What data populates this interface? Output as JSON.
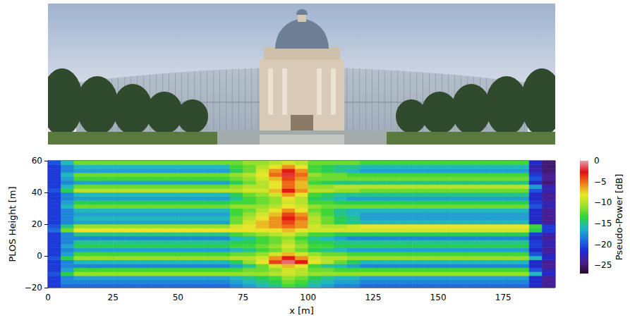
{
  "chart_data": {
    "type": "heatmap",
    "xlabel": "x [m]",
    "ylabel": "PLOS Height [m]",
    "xlim": [
      0,
      195
    ],
    "ylim": [
      -20,
      60
    ],
    "xticks": [
      0,
      25,
      50,
      75,
      100,
      125,
      150,
      175
    ],
    "yticks": [
      {
        "value": -20,
        "label": "−20"
      },
      0,
      20,
      40,
      60
    ],
    "grid": false,
    "x": [
      2.5,
      7.5,
      12.5,
      17.5,
      22.5,
      27.5,
      32.5,
      37.5,
      42.5,
      47.5,
      52.5,
      57.5,
      62.5,
      67.5,
      72.5,
      77.5,
      82.5,
      87.5,
      92.5,
      97.5,
      102.5,
      107.5,
      112.5,
      117.5,
      122.5,
      127.5,
      132.5,
      137.5,
      142.5,
      147.5,
      152.5,
      157.5,
      162.5,
      167.5,
      172.5,
      177.5,
      182.5,
      187.5,
      192.5
    ],
    "y": [
      -18.75,
      -16.25,
      -13.75,
      -11.25,
      -8.75,
      -6.25,
      -3.75,
      -1.25,
      1.25,
      3.75,
      6.25,
      8.75,
      11.25,
      13.75,
      16.25,
      18.75,
      21.25,
      23.75,
      26.25,
      28.75,
      31.25,
      33.75,
      36.25,
      38.75,
      41.25,
      43.75,
      46.25,
      48.75,
      51.25,
      53.75,
      56.25,
      58.75
    ],
    "z": [
      [
        -21,
        -19,
        -19,
        -19,
        -19,
        -19,
        -19,
        -19,
        -19,
        -19,
        -19,
        -19,
        -19,
        -19,
        -18,
        -17,
        -16,
        -15,
        -13,
        -14,
        -16,
        -17,
        -18,
        -18,
        -19,
        -19,
        -19,
        -19,
        -19,
        -19,
        -19,
        -19,
        -19,
        -19,
        -19,
        -19,
        -19,
        -22,
        -24
      ],
      [
        -21,
        -18,
        -18,
        -18,
        -18,
        -18,
        -18,
        -18,
        -18,
        -18,
        -18,
        -18,
        -18,
        -18,
        -17,
        -16,
        -15,
        -14,
        -12,
        -13,
        -15,
        -16,
        -17,
        -17,
        -18,
        -18,
        -18,
        -18,
        -18,
        -18,
        -18,
        -18,
        -18,
        -18,
        -18,
        -18,
        -18,
        -22,
        -24
      ],
      [
        -21,
        -18,
        -17,
        -17,
        -17,
        -17,
        -17,
        -17,
        -17,
        -17,
        -17,
        -17,
        -17,
        -17,
        -16,
        -15,
        -14,
        -13,
        -11,
        -12,
        -14,
        -15,
        -16,
        -16,
        -17,
        -17,
        -17,
        -17,
        -17,
        -17,
        -17,
        -17,
        -17,
        -17,
        -17,
        -17,
        -17,
        -22,
        -24
      ],
      [
        -20,
        -14,
        -11,
        -11,
        -11,
        -11,
        -11,
        -11,
        -11,
        -11,
        -11,
        -11,
        -11,
        -11,
        -11,
        -11,
        -11,
        -10,
        -9,
        -10,
        -11,
        -11,
        -11,
        -11,
        -11,
        -11,
        -11,
        -11,
        -11,
        -11,
        -11,
        -11,
        -11,
        -11,
        -11,
        -11,
        -11,
        -16,
        -22
      ],
      [
        -21,
        -17,
        -13,
        -13,
        -13,
        -13,
        -13,
        -13,
        -13,
        -13,
        -13,
        -13,
        -13,
        -13,
        -13,
        -12,
        -12,
        -11,
        -9,
        -10,
        -12,
        -12,
        -13,
        -13,
        -13,
        -13,
        -13,
        -13,
        -13,
        -13,
        -13,
        -13,
        -13,
        -13,
        -13,
        -13,
        -13,
        -20,
        -23
      ],
      [
        -21,
        -18,
        -18,
        -18,
        -18,
        -18,
        -18,
        -18,
        -18,
        -18,
        -18,
        -18,
        -18,
        -18,
        -17,
        -15,
        -12,
        -9,
        -7,
        -8,
        -13,
        -15,
        -16,
        -17,
        -18,
        -18,
        -18,
        -18,
        -18,
        -18,
        -18,
        -18,
        -18,
        -18,
        -18,
        -18,
        -18,
        -22,
        -24
      ],
      [
        -21,
        -18,
        -16,
        -16,
        -16,
        -16,
        -16,
        -16,
        -16,
        -16,
        -16,
        -16,
        -16,
        -16,
        -14,
        -11,
        -8,
        -4,
        -1,
        -3,
        -8,
        -10,
        -12,
        -14,
        -16,
        -16,
        -16,
        -16,
        -16,
        -16,
        -16,
        -16,
        -16,
        -16,
        -16,
        -16,
        -16,
        -22,
        -24
      ],
      [
        -20,
        -14,
        -11,
        -11,
        -11,
        -11,
        -11,
        -11,
        -11,
        -11,
        -11,
        -11,
        -11,
        -11,
        -10,
        -10,
        -9,
        -6,
        -3,
        -6,
        -9,
        -10,
        -10,
        -11,
        -11,
        -11,
        -11,
        -11,
        -11,
        -11,
        -11,
        -11,
        -11,
        -11,
        -11,
        -11,
        -11,
        -16,
        -22
      ],
      [
        -21,
        -17,
        -13,
        -13,
        -13,
        -13,
        -13,
        -13,
        -13,
        -13,
        -13,
        -13,
        -13,
        -13,
        -12,
        -12,
        -11,
        -9,
        -7,
        -9,
        -11,
        -12,
        -12,
        -13,
        -13,
        -13,
        -13,
        -13,
        -13,
        -13,
        -13,
        -13,
        -13,
        -13,
        -13,
        -13,
        -13,
        -20,
        -23
      ],
      [
        -21,
        -18,
        -17,
        -17,
        -17,
        -17,
        -17,
        -17,
        -17,
        -17,
        -17,
        -17,
        -17,
        -17,
        -16,
        -15,
        -13,
        -12,
        -10,
        -12,
        -14,
        -15,
        -16,
        -17,
        -17,
        -17,
        -17,
        -17,
        -17,
        -17,
        -17,
        -17,
        -17,
        -17,
        -17,
        -17,
        -17,
        -22,
        -24
      ],
      [
        -21,
        -17,
        -14,
        -14,
        -14,
        -14,
        -14,
        -14,
        -14,
        -14,
        -14,
        -14,
        -14,
        -14,
        -13,
        -13,
        -12,
        -11,
        -9,
        -11,
        -13,
        -13,
        -14,
        -14,
        -14,
        -14,
        -14,
        -14,
        -14,
        -14,
        -14,
        -14,
        -14,
        -14,
        -14,
        -14,
        -14,
        -21,
        -23
      ],
      [
        -21,
        -18,
        -15,
        -15,
        -15,
        -15,
        -15,
        -15,
        -15,
        -15,
        -15,
        -15,
        -15,
        -15,
        -14,
        -14,
        -13,
        -12,
        -10,
        -12,
        -14,
        -14,
        -15,
        -15,
        -15,
        -15,
        -15,
        -15,
        -15,
        -15,
        -15,
        -15,
        -15,
        -15,
        -15,
        -15,
        -15,
        -21,
        -23
      ],
      [
        -21,
        -18,
        -18,
        -18,
        -18,
        -18,
        -18,
        -18,
        -18,
        -18,
        -18,
        -18,
        -18,
        -18,
        -16,
        -15,
        -13,
        -12,
        -11,
        -13,
        -15,
        -16,
        -17,
        -18,
        -18,
        -18,
        -18,
        -18,
        -18,
        -18,
        -18,
        -18,
        -18,
        -18,
        -18,
        -18,
        -18,
        -22,
        -24
      ],
      [
        -21,
        -18,
        -15,
        -15,
        -15,
        -15,
        -15,
        -15,
        -15,
        -15,
        -15,
        -15,
        -15,
        -15,
        -13,
        -12,
        -11,
        -10,
        -9,
        -11,
        -13,
        -13,
        -14,
        -14,
        -14,
        -14,
        -14,
        -14,
        -14,
        -14,
        -14,
        -14,
        -14,
        -14,
        -14,
        -14,
        -14,
        -21,
        -23
      ],
      [
        -19,
        -12,
        -8,
        -8,
        -8,
        -8,
        -8,
        -8,
        -8,
        -8,
        -8,
        -8,
        -8,
        -8,
        -8,
        -8,
        -8,
        -8,
        -7,
        -8,
        -9,
        -9,
        -9,
        -9,
        -9,
        -9,
        -9,
        -9,
        -9,
        -9,
        -9,
        -9,
        -9,
        -9,
        -9,
        -9,
        -9,
        -14,
        -21
      ],
      [
        -20,
        -15,
        -11,
        -11,
        -11,
        -11,
        -11,
        -11,
        -11,
        -11,
        -11,
        -11,
        -11,
        -11,
        -9,
        -8,
        -7,
        -6,
        -5,
        -6,
        -9,
        -10,
        -10,
        -9,
        -8,
        -8,
        -8,
        -8,
        -8,
        -8,
        -8,
        -8,
        -8,
        -8,
        -8,
        -8,
        -8,
        -13,
        -21
      ],
      [
        -21,
        -18,
        -17,
        -17,
        -17,
        -17,
        -17,
        -17,
        -17,
        -17,
        -17,
        -17,
        -17,
        -17,
        -12,
        -9,
        -7,
        -6,
        -4,
        -6,
        -10,
        -12,
        -14,
        -15,
        -16,
        -16,
        -16,
        -16,
        -16,
        -16,
        -16,
        -16,
        -16,
        -16,
        -16,
        -16,
        -16,
        -22,
        -24
      ],
      [
        -21,
        -18,
        -16,
        -16,
        -16,
        -16,
        -16,
        -16,
        -16,
        -16,
        -16,
        -16,
        -16,
        -16,
        -12,
        -10,
        -8,
        -6,
        -3,
        -5,
        -10,
        -12,
        -14,
        -15,
        -17,
        -17,
        -17,
        -17,
        -17,
        -17,
        -17,
        -17,
        -17,
        -17,
        -17,
        -17,
        -17,
        -22,
        -24
      ],
      [
        -21,
        -18,
        -17,
        -17,
        -17,
        -17,
        -17,
        -17,
        -17,
        -17,
        -17,
        -17,
        -17,
        -17,
        -13,
        -11,
        -9,
        -7,
        -4,
        -6,
        -11,
        -13,
        -15,
        -16,
        -17,
        -17,
        -17,
        -17,
        -17,
        -17,
        -17,
        -17,
        -17,
        -17,
        -17,
        -17,
        -17,
        -22,
        -24
      ],
      [
        -21,
        -18,
        -16,
        -16,
        -16,
        -16,
        -16,
        -16,
        -16,
        -16,
        -16,
        -16,
        -16,
        -16,
        -13,
        -12,
        -10,
        -8,
        -6,
        -8,
        -12,
        -13,
        -15,
        -16,
        -16,
        -16,
        -16,
        -16,
        -16,
        -16,
        -16,
        -16,
        -16,
        -16,
        -16,
        -16,
        -16,
        -22,
        -24
      ],
      [
        -21,
        -16,
        -12,
        -12,
        -12,
        -12,
        -12,
        -12,
        -12,
        -12,
        -12,
        -12,
        -12,
        -12,
        -11,
        -11,
        -11,
        -10,
        -8,
        -9,
        -11,
        -12,
        -12,
        -12,
        -12,
        -12,
        -12,
        -12,
        -12,
        -12,
        -12,
        -12,
        -12,
        -12,
        -12,
        -12,
        -12,
        -20,
        -23
      ],
      [
        -21,
        -17,
        -14,
        -14,
        -14,
        -14,
        -14,
        -14,
        -14,
        -14,
        -14,
        -14,
        -14,
        -14,
        -13,
        -13,
        -12,
        -11,
        -9,
        -10,
        -13,
        -13,
        -14,
        -14,
        -14,
        -14,
        -14,
        -14,
        -14,
        -14,
        -14,
        -14,
        -14,
        -14,
        -14,
        -14,
        -14,
        -21,
        -23
      ],
      [
        -21,
        -18,
        -17,
        -17,
        -17,
        -17,
        -17,
        -17,
        -17,
        -17,
        -17,
        -17,
        -17,
        -17,
        -15,
        -13,
        -12,
        -11,
        -8,
        -10,
        -14,
        -15,
        -16,
        -17,
        -17,
        -17,
        -17,
        -17,
        -17,
        -17,
        -17,
        -17,
        -17,
        -17,
        -17,
        -17,
        -17,
        -22,
        -24
      ],
      [
        -21,
        -18,
        -16,
        -16,
        -16,
        -16,
        -16,
        -16,
        -16,
        -16,
        -16,
        -16,
        -16,
        -16,
        -14,
        -12,
        -11,
        -9,
        -6,
        -8,
        -13,
        -14,
        -15,
        -15,
        -15,
        -15,
        -15,
        -15,
        -15,
        -15,
        -15,
        -15,
        -15,
        -15,
        -15,
        -15,
        -15,
        -22,
        -24
      ],
      [
        -20,
        -14,
        -10,
        -10,
        -10,
        -10,
        -10,
        -10,
        -10,
        -10,
        -10,
        -10,
        -10,
        -10,
        -10,
        -9,
        -9,
        -7,
        -3,
        -6,
        -10,
        -10,
        -11,
        -11,
        -12,
        -12,
        -12,
        -12,
        -12,
        -12,
        -12,
        -12,
        -12,
        -12,
        -12,
        -12,
        -12,
        -20,
        -23
      ],
      [
        -21,
        -16,
        -12,
        -12,
        -12,
        -12,
        -12,
        -12,
        -12,
        -12,
        -12,
        -12,
        -12,
        -12,
        -11,
        -10,
        -10,
        -8,
        -5,
        -7,
        -11,
        -11,
        -10,
        -10,
        -10,
        -10,
        -10,
        -10,
        -10,
        -10,
        -10,
        -10,
        -10,
        -10,
        -10,
        -10,
        -10,
        -17,
        -23
      ],
      [
        -21,
        -18,
        -17,
        -17,
        -17,
        -17,
        -17,
        -17,
        -17,
        -17,
        -17,
        -17,
        -17,
        -17,
        -14,
        -12,
        -10,
        -8,
        -5,
        -7,
        -13,
        -14,
        -15,
        -15,
        -15,
        -15,
        -15,
        -15,
        -15,
        -15,
        -15,
        -15,
        -15,
        -15,
        -15,
        -15,
        -15,
        -22,
        -25
      ],
      [
        -21,
        -17,
        -13,
        -13,
        -13,
        -13,
        -13,
        -13,
        -13,
        -13,
        -13,
        -13,
        -13,
        -13,
        -12,
        -11,
        -9,
        -7,
        -4,
        -6,
        -12,
        -12,
        -12,
        -12,
        -12,
        -12,
        -12,
        -12,
        -12,
        -12,
        -12,
        -12,
        -12,
        -12,
        -12,
        -12,
        -12,
        -20,
        -24
      ],
      [
        -21,
        -16,
        -12,
        -12,
        -12,
        -12,
        -12,
        -12,
        -12,
        -12,
        -12,
        -12,
        -12,
        -12,
        -11,
        -10,
        -8,
        -5,
        -2,
        -5,
        -11,
        -12,
        -12,
        -13,
        -13,
        -13,
        -13,
        -13,
        -13,
        -13,
        -13,
        -13,
        -13,
        -13,
        -13,
        -13,
        -13,
        -21,
        -24
      ],
      [
        -21,
        -18,
        -17,
        -17,
        -17,
        -17,
        -17,
        -17,
        -17,
        -17,
        -17,
        -17,
        -17,
        -17,
        -14,
        -12,
        -9,
        -6,
        -3,
        -6,
        -13,
        -14,
        -15,
        -16,
        -17,
        -17,
        -17,
        -17,
        -17,
        -17,
        -17,
        -17,
        -17,
        -17,
        -17,
        -17,
        -17,
        -23,
        -25
      ],
      [
        -21,
        -18,
        -16,
        -16,
        -16,
        -16,
        -16,
        -16,
        -16,
        -16,
        -16,
        -16,
        -16,
        -16,
        -13,
        -12,
        -10,
        -8,
        -6,
        -8,
        -13,
        -14,
        -15,
        -15,
        -16,
        -16,
        -16,
        -16,
        -16,
        -16,
        -16,
        -16,
        -16,
        -16,
        -16,
        -16,
        -16,
        -23,
        -25
      ],
      [
        -20,
        -16,
        -12,
        -12,
        -12,
        -12,
        -12,
        -12,
        -12,
        -12,
        -12,
        -12,
        -12,
        -12,
        -12,
        -11,
        -11,
        -10,
        -9,
        -10,
        -12,
        -12,
        -12,
        -12,
        -13,
        -13,
        -13,
        -13,
        -13,
        -13,
        -13,
        -13,
        -13,
        -13,
        -13,
        -13,
        -13,
        -22,
        -25
      ]
    ],
    "colorbar": {
      "label": "Pseudo-Power [dB]",
      "range": [
        -27,
        0
      ],
      "ticks": [
        0,
        {
          "value": -5,
          "label": "−5"
        },
        {
          "value": -10,
          "label": "−10"
        },
        {
          "value": -15,
          "label": "−15"
        },
        {
          "value": -20,
          "label": "−20"
        },
        {
          "value": -25,
          "label": "−25"
        }
      ]
    }
  }
}
